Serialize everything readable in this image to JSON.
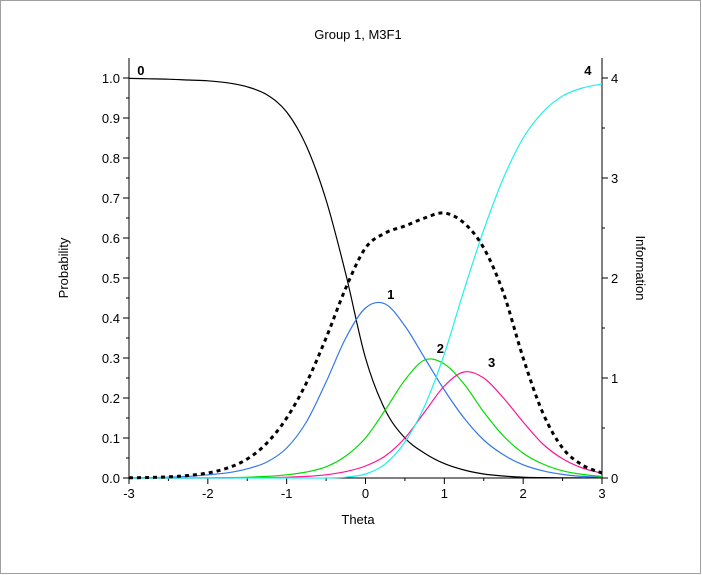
{
  "chart_data": {
    "type": "line",
    "title": "Group 1, M3F1",
    "xlabel": "Theta",
    "ylabel": "Probability",
    "y2label": "Information",
    "xlim": [
      -3,
      3
    ],
    "ylim": [
      0,
      1.05
    ],
    "y2lim": [
      0,
      4.2
    ],
    "x_ticks": [
      -3,
      -2,
      -1,
      0,
      1,
      2,
      3
    ],
    "y_ticks": [
      "0.0",
      "0.1",
      "0.2",
      "0.3",
      "0.4",
      "0.5",
      "0.6",
      "0.7",
      "0.8",
      "0.9",
      "1.0"
    ],
    "y2_ticks": [
      "0",
      "1",
      "2",
      "3",
      "4"
    ],
    "grid": false,
    "x": [
      -3,
      -2.75,
      -2.5,
      -2.25,
      -2,
      -1.75,
      -1.5,
      -1.25,
      -1,
      -0.75,
      -0.5,
      -0.25,
      0,
      0.25,
      0.5,
      0.75,
      1,
      1.25,
      1.5,
      1.75,
      2,
      2.25,
      2.5,
      2.75,
      3
    ],
    "series": [
      {
        "name": "0",
        "color": "#000000",
        "dashed": false,
        "axis": "left",
        "label_at": [
          -2.85,
          1.0
        ],
        "values": [
          0.999,
          0.998,
          0.997,
          0.995,
          0.993,
          0.988,
          0.978,
          0.958,
          0.915,
          0.83,
          0.695,
          0.51,
          0.3,
          0.17,
          0.1,
          0.062,
          0.036,
          0.02,
          0.01,
          0.005,
          0.002,
          0.001,
          0.0005,
          0.0002,
          0.0001
        ]
      },
      {
        "name": "1",
        "color": "#3377ee",
        "dashed": false,
        "axis": "left",
        "label_at": [
          0.32,
          0.44
        ],
        "values": [
          0.0005,
          0.001,
          0.002,
          0.004,
          0.008,
          0.013,
          0.023,
          0.04,
          0.075,
          0.14,
          0.24,
          0.35,
          0.425,
          0.435,
          0.38,
          0.3,
          0.22,
          0.15,
          0.095,
          0.058,
          0.033,
          0.018,
          0.009,
          0.004,
          0.002
        ]
      },
      {
        "name": "2",
        "color": "#00dd00",
        "dashed": false,
        "axis": "left",
        "label_at": [
          0.95,
          0.305
        ],
        "values": [
          0,
          0,
          0,
          0,
          0.0005,
          0.001,
          0.002,
          0.004,
          0.008,
          0.015,
          0.028,
          0.055,
          0.1,
          0.17,
          0.245,
          0.295,
          0.285,
          0.235,
          0.165,
          0.105,
          0.062,
          0.035,
          0.018,
          0.009,
          0.004
        ]
      },
      {
        "name": "3",
        "color": "#ff1493",
        "dashed": false,
        "axis": "left",
        "label_at": [
          1.6,
          0.27
        ],
        "values": [
          0,
          0,
          0,
          0,
          0,
          0,
          0.0005,
          0.001,
          0.002,
          0.004,
          0.008,
          0.016,
          0.03,
          0.055,
          0.1,
          0.165,
          0.23,
          0.265,
          0.25,
          0.2,
          0.14,
          0.085,
          0.048,
          0.025,
          0.012
        ]
      },
      {
        "name": "4",
        "color": "#22eeee",
        "dashed": false,
        "axis": "left",
        "label_at": [
          2.82,
          1.0
        ],
        "values": [
          0,
          0,
          0,
          0,
          0,
          0,
          0,
          0,
          0,
          0,
          0,
          0.002,
          0.01,
          0.035,
          0.09,
          0.18,
          0.31,
          0.47,
          0.62,
          0.75,
          0.85,
          0.915,
          0.955,
          0.975,
          0.985
        ]
      },
      {
        "name": "",
        "color": "#000000",
        "dashed": true,
        "axis": "right",
        "values": [
          0.002,
          0.005,
          0.012,
          0.025,
          0.05,
          0.1,
          0.19,
          0.35,
          0.6,
          0.95,
          1.4,
          1.9,
          2.3,
          2.45,
          2.52,
          2.6,
          2.65,
          2.55,
          2.3,
          1.85,
          1.2,
          0.65,
          0.3,
          0.13,
          0.05
        ]
      }
    ]
  }
}
